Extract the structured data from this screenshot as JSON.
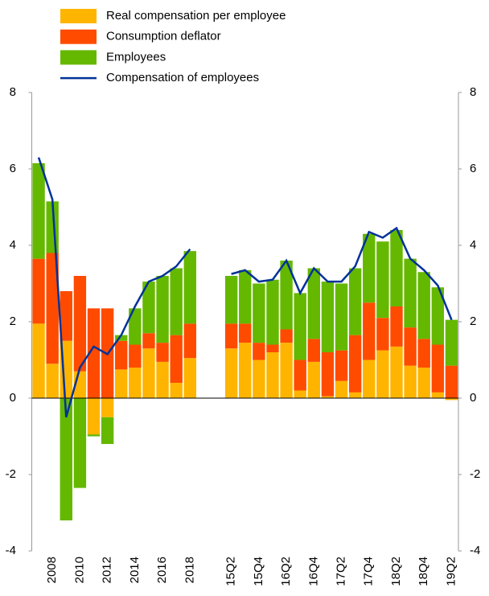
{
  "chart_data": {
    "type": "bar",
    "categories": [
      null,
      "2008",
      null,
      "2010",
      null,
      "2012",
      null,
      "2014",
      null,
      "2016",
      null,
      "2018",
      null,
      null,
      "15Q2",
      null,
      "15Q4",
      null,
      "16Q2",
      null,
      "16Q4",
      null,
      "17Q2",
      null,
      "17Q4",
      null,
      "18Q2",
      null,
      "18Q4",
      null,
      "19Q2"
    ],
    "series": [
      {
        "name": "Real compensation per employee",
        "color": "#ffb400",
        "values": [
          1.95,
          0.9,
          1.5,
          0.7,
          -0.95,
          -0.5,
          0.75,
          0.8,
          1.3,
          0.95,
          0.4,
          1.05,
          null,
          null,
          1.3,
          1.45,
          1.0,
          1.2,
          1.45,
          0.2,
          0.95,
          0.05,
          0.45,
          0.15,
          1.0,
          1.25,
          1.35,
          0.85,
          0.8,
          0.15,
          -0.05
        ]
      },
      {
        "name": "Consumption deflator",
        "color": "#ff4b00",
        "values": [
          1.7,
          2.9,
          1.3,
          2.5,
          2.35,
          2.35,
          0.75,
          0.6,
          0.4,
          0.5,
          1.25,
          0.9,
          null,
          null,
          0.65,
          0.5,
          0.45,
          0.2,
          0.35,
          0.8,
          0.6,
          1.15,
          0.8,
          1.5,
          1.5,
          0.85,
          1.05,
          1.0,
          0.75,
          1.25,
          0.85
        ]
      },
      {
        "name": "Employees",
        "color": "#65b800",
        "values": [
          2.5,
          1.35,
          -3.2,
          -2.35,
          -0.05,
          -0.7,
          0.15,
          0.95,
          1.35,
          1.75,
          1.75,
          1.9,
          null,
          null,
          1.25,
          1.4,
          1.55,
          1.7,
          1.8,
          1.75,
          1.85,
          1.85,
          1.75,
          1.75,
          1.8,
          2.0,
          2.0,
          1.8,
          1.75,
          1.5,
          1.2
        ]
      },
      {
        "name": "Compensation of employees",
        "type": "line",
        "color": "#003299",
        "values": [
          6.3,
          5.2,
          -0.5,
          0.8,
          1.35,
          1.15,
          1.65,
          2.4,
          3.05,
          3.2,
          3.45,
          3.9,
          null,
          null,
          3.25,
          3.35,
          3.05,
          3.1,
          3.6,
          2.75,
          3.4,
          3.05,
          3.05,
          3.45,
          4.35,
          4.2,
          4.45,
          3.65,
          3.35,
          2.95,
          2.05
        ]
      }
    ],
    "ylim": [
      -4,
      8
    ],
    "yticks": [
      -4,
      -2,
      0,
      2,
      4,
      6,
      8
    ],
    "y2lim": [
      -4,
      8
    ],
    "y2ticks": [
      -4,
      -2,
      0,
      2,
      4,
      6,
      8
    ]
  }
}
